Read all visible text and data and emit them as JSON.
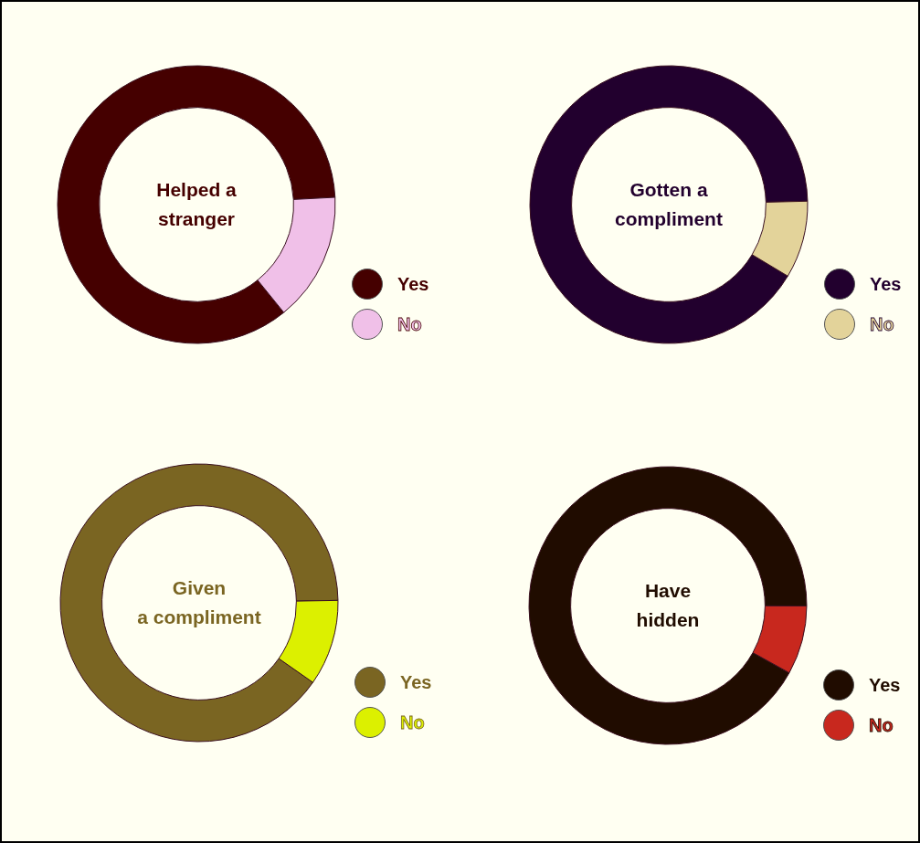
{
  "chart_data": [
    {
      "type": "donut",
      "title": "Helped a\nstranger",
      "categories": [
        "Yes",
        "No"
      ],
      "values": [
        85,
        15
      ],
      "colors": [
        "#450000",
        "#f0c0e8"
      ],
      "legend": "right"
    },
    {
      "type": "donut",
      "title": "Gotten a\ncompliment",
      "categories": [
        "Yes",
        "No"
      ],
      "values": [
        91,
        9
      ],
      "colors": [
        "#22002e",
        "#e3d39a"
      ],
      "legend": "right"
    },
    {
      "type": "donut",
      "title": "Given\na compliment",
      "categories": [
        "Yes",
        "No"
      ],
      "values": [
        90,
        10
      ],
      "colors": [
        "#7a6522",
        "#dcf000"
      ],
      "legend": "right"
    },
    {
      "type": "donut",
      "title": "Have\nhidden",
      "categories": [
        "Yes",
        "No"
      ],
      "values": [
        92,
        8
      ],
      "colors": [
        "#200c00",
        "#c8281e"
      ],
      "legend": "right"
    }
  ]
}
